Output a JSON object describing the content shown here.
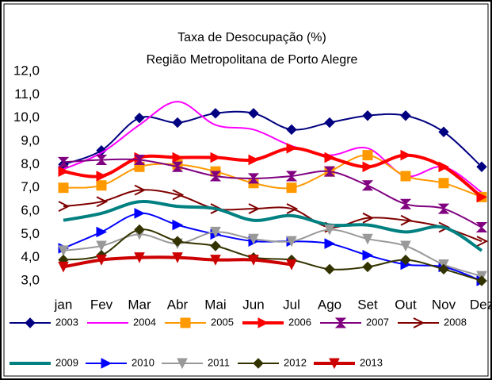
{
  "chart_data": {
    "type": "line",
    "title": "Taxa de Desocupação (%)",
    "subtitle": "Região Metropolitana de Porto Alegre",
    "categories": [
      "jan",
      "Fev",
      "Mar",
      "Abr",
      "Mai",
      "Jun",
      "Jul",
      "Ago",
      "Set",
      "Out",
      "Nov",
      "Dez"
    ],
    "ylim": [
      3,
      12
    ],
    "yticks": [
      {
        "value": 3,
        "label": "3,0"
      },
      {
        "value": 4,
        "label": "4,0"
      },
      {
        "value": 5,
        "label": "5,0"
      },
      {
        "value": 6,
        "label": "6,0"
      },
      {
        "value": 7,
        "label": "7,0"
      },
      {
        "value": 8,
        "label": "8,0"
      },
      {
        "value": 9,
        "label": "9,0"
      },
      {
        "value": 10,
        "label": "10,0"
      },
      {
        "value": 11,
        "label": "11,0"
      },
      {
        "value": 12,
        "label": "12,0"
      }
    ],
    "grid": false,
    "legend": "bottom",
    "series": [
      {
        "name": "2003",
        "color": "#000080",
        "marker": "diamond",
        "values": [
          8.0,
          8.6,
          10.0,
          9.8,
          10.2,
          10.2,
          9.5,
          9.8,
          10.1,
          10.1,
          9.4,
          7.9
        ]
      },
      {
        "name": "2004",
        "color": "#ff00ff",
        "marker": "none",
        "values": [
          7.8,
          8.5,
          9.7,
          10.7,
          9.7,
          9.5,
          8.8,
          8.4,
          8.7,
          7.5,
          7.9,
          6.8
        ]
      },
      {
        "name": "2005",
        "color": "#ff9900",
        "marker": "square",
        "values": [
          7.0,
          7.1,
          7.9,
          8.0,
          7.7,
          7.2,
          7.0,
          7.7,
          8.4,
          7.5,
          7.2,
          6.6
        ]
      },
      {
        "name": "2006",
        "color": "#ff0000",
        "marker": "triangle-right",
        "values": [
          7.7,
          7.5,
          8.3,
          8.3,
          8.3,
          8.2,
          8.7,
          8.3,
          7.9,
          8.4,
          7.9,
          6.6
        ]
      },
      {
        "name": "2007",
        "color": "#800080",
        "marker": "bowtie",
        "values": [
          8.1,
          8.2,
          8.2,
          7.9,
          7.5,
          7.4,
          7.5,
          7.7,
          7.1,
          6.3,
          6.1,
          5.3
        ]
      },
      {
        "name": "2008",
        "color": "#800000",
        "marker": "arrow",
        "values": [
          6.2,
          6.4,
          6.9,
          6.7,
          6.1,
          6.1,
          6.1,
          5.3,
          5.7,
          5.6,
          5.3,
          4.7
        ]
      },
      {
        "name": "2009",
        "color": "#008080",
        "marker": "none",
        "values": [
          5.6,
          5.9,
          6.4,
          6.2,
          6.1,
          5.6,
          5.8,
          5.4,
          5.4,
          5.1,
          5.3,
          4.3
        ]
      },
      {
        "name": "2010",
        "color": "#0000ff",
        "marker": "triangle-right",
        "values": [
          4.4,
          5.1,
          5.9,
          5.4,
          5.0,
          4.7,
          4.7,
          4.6,
          4.1,
          3.7,
          3.6,
          3.0
        ]
      },
      {
        "name": "2011",
        "color": "#999999",
        "marker": "triangle-down",
        "values": [
          4.3,
          4.5,
          5.0,
          4.6,
          5.1,
          4.8,
          4.7,
          5.2,
          4.8,
          4.5,
          3.7,
          3.2
        ]
      },
      {
        "name": "2012",
        "color": "#333300",
        "marker": "diamond",
        "values": [
          3.9,
          4.1,
          5.2,
          4.7,
          4.5,
          4.0,
          3.9,
          3.5,
          3.6,
          3.9,
          3.5,
          3.0
        ]
      },
      {
        "name": "2013",
        "color": "#cc0000",
        "marker": "triangle-down",
        "values": [
          3.6,
          3.9,
          4.0,
          4.0,
          3.9,
          3.9,
          3.7,
          null,
          null,
          null,
          null,
          null
        ]
      }
    ]
  }
}
